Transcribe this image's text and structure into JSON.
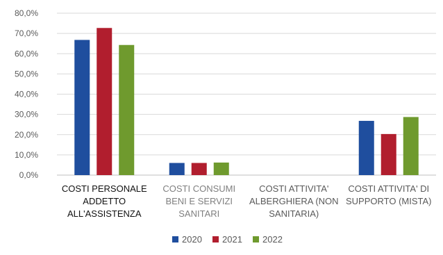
{
  "chart_data": {
    "type": "bar",
    "title": "",
    "xlabel": "",
    "ylabel": "",
    "ylim": [
      0,
      80
    ],
    "y_tick_values": [
      0,
      10,
      20,
      30,
      40,
      50,
      60,
      70,
      80
    ],
    "y_tick_labels": [
      "0,0%",
      "10,0%",
      "20,0%",
      "30,0%",
      "40,0%",
      "50,0%",
      "60,0%",
      "70,0%",
      "80,0%"
    ],
    "grid": true,
    "legend_position": "bottom",
    "categories": [
      [
        "COSTI PERSONALE",
        "ADDETTO",
        "ALL'ASSISTENZA"
      ],
      [
        "COSTI CONSUMI",
        "BENI E SERVIZI",
        "SANITARI"
      ],
      [
        "COSTI ATTIVITA'",
        "ALBERGHIERA (NON",
        "SANITARIA)"
      ],
      [
        "COSTI ATTIVITA' DI",
        "SUPPORTO (MISTA)"
      ]
    ],
    "category_colors": [
      "#111111",
      "#7f7f7f",
      "#595959",
      "#595959"
    ],
    "series": [
      {
        "name": "2020",
        "color": "#1f4e9e",
        "values": [
          66.8,
          6.0,
          0,
          26.8
        ]
      },
      {
        "name": "2021",
        "color": "#b11e2e",
        "values": [
          72.7,
          6.0,
          0,
          20.3
        ]
      },
      {
        "name": "2022",
        "color": "#6f9a2e",
        "values": [
          64.3,
          6.2,
          0,
          28.7
        ]
      }
    ]
  }
}
